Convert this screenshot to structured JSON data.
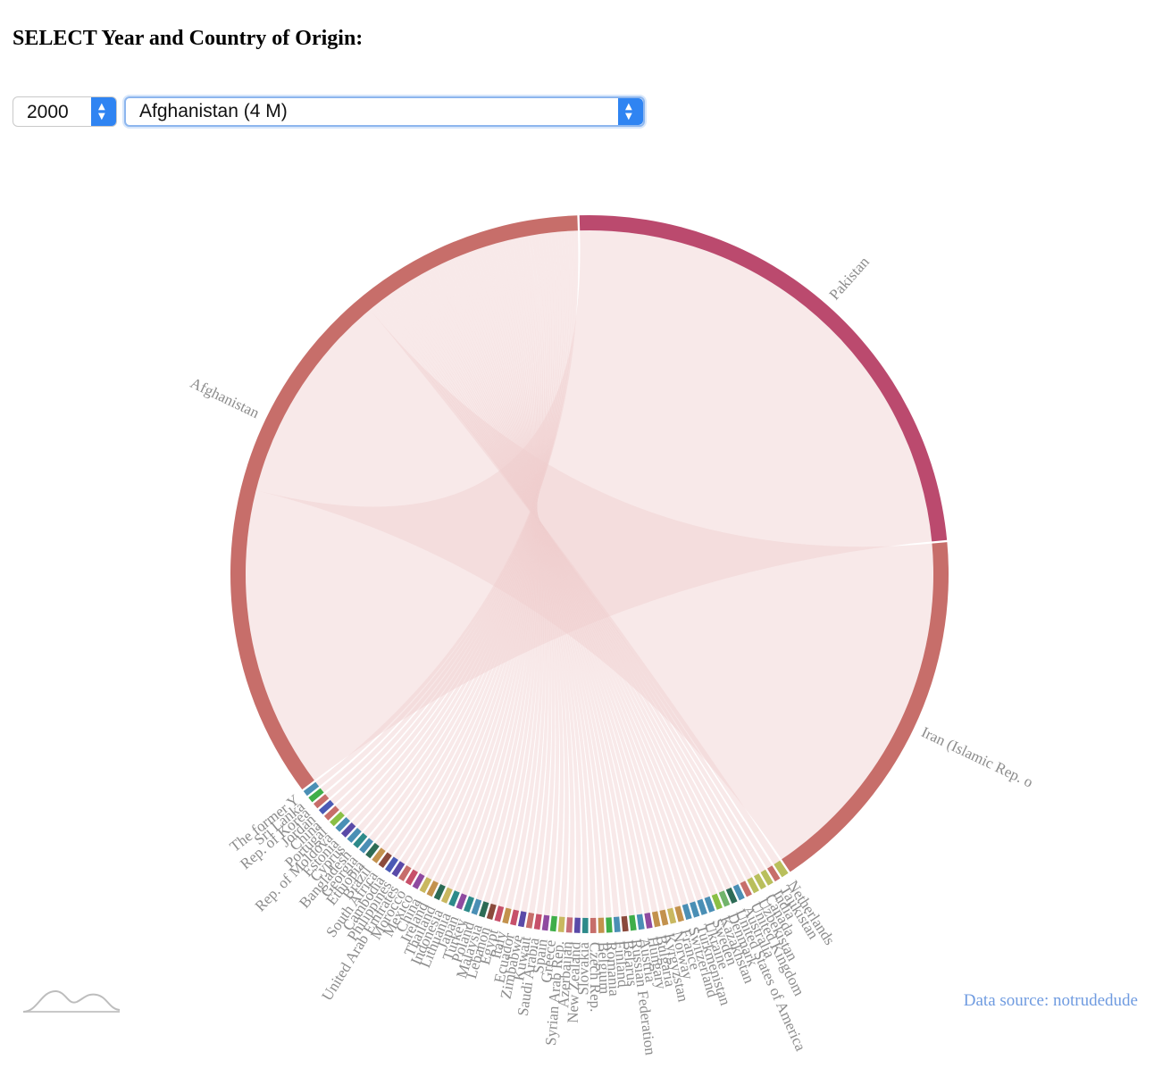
{
  "header": {
    "title": "SELECT Year and Country of Origin:"
  },
  "controls": {
    "year": {
      "value": "2000"
    },
    "country": {
      "value": "Afghanistan (4 M)"
    }
  },
  "footer": {
    "source": "Data source: notrudedude"
  },
  "icons": {
    "select_arrow": "updown-chevron-icon",
    "logo": "mountain-wave-logo-icon"
  },
  "colors": {
    "chord_fill": "#f0cfcf",
    "label": "#8c8c8c",
    "source_link": "#6f9be0",
    "select_accent": "#2f84f2"
  },
  "chart_data": {
    "type": "chord",
    "origin": "Afghanistan",
    "year": "2000",
    "destinations": [
      {
        "name": "Pakistan",
        "value": 2000,
        "color": "#bb4a6e"
      },
      {
        "name": "Iran (Islamic Rep. o",
        "value": 1420,
        "color": "#c76e6a"
      },
      {
        "name": "Netherlands",
        "value": 28,
        "color": "#b9bf5c"
      },
      {
        "name": "Tajikistan",
        "value": 22,
        "color": "#c76e6a"
      },
      {
        "name": "India",
        "value": 22,
        "color": "#b9bf5c"
      },
      {
        "name": "Canada",
        "value": 22,
        "color": "#b9bf5c"
      },
      {
        "name": "Uzbekistan",
        "value": 22,
        "color": "#b9bf5c"
      },
      {
        "name": "United Kingdom",
        "value": 22,
        "color": "#c76e6a"
      },
      {
        "name": "Australia",
        "value": 22,
        "color": "#4a8fb5"
      },
      {
        "name": "United States of America",
        "value": 22,
        "color": "#2d6b55"
      },
      {
        "name": "Denmark",
        "value": 22,
        "color": "#71b36a"
      },
      {
        "name": "Kazakhstan",
        "value": 22,
        "color": "#8abf45"
      },
      {
        "name": "Sweden",
        "value": 22,
        "color": "#4a8fb5"
      },
      {
        "name": "Ukraine",
        "value": 22,
        "color": "#4a8fb5"
      },
      {
        "name": "Turkmenistan",
        "value": 22,
        "color": "#4a8fb5"
      },
      {
        "name": "Switzerland",
        "value": 22,
        "color": "#4a8fb5"
      },
      {
        "name": "France",
        "value": 22,
        "color": "#c3924d"
      },
      {
        "name": "Norway",
        "value": 22,
        "color": "#c9b860"
      },
      {
        "name": "Kyrgyzstan",
        "value": 22,
        "color": "#c3924d"
      },
      {
        "name": "Bulgaria",
        "value": 22,
        "color": "#c3924d"
      },
      {
        "name": "Hungary",
        "value": 22,
        "color": "#8f4aa0"
      },
      {
        "name": "Austria",
        "value": 22,
        "color": "#4a8fb5"
      },
      {
        "name": "Russian Federation",
        "value": 22,
        "color": "#3fae49"
      },
      {
        "name": "Belarus",
        "value": 22,
        "color": "#8b4a3c"
      },
      {
        "name": "Finland",
        "value": 22,
        "color": "#4a8fb5"
      },
      {
        "name": "Romania",
        "value": 22,
        "color": "#3fae49"
      },
      {
        "name": "Belgium",
        "value": 22,
        "color": "#c3924d"
      },
      {
        "name": "Czech Rep.",
        "value": 22,
        "color": "#c76e6a"
      },
      {
        "name": "Slovakia",
        "value": 22,
        "color": "#2d8a8a"
      },
      {
        "name": "New Zealand",
        "value": 22,
        "color": "#5a4aa8"
      },
      {
        "name": "Azerbaijan",
        "value": 22,
        "color": "#c76e7a"
      },
      {
        "name": "Syrian Arab Rep.",
        "value": 22,
        "color": "#c9b860"
      },
      {
        "name": "Greece",
        "value": 22,
        "color": "#3fae49"
      },
      {
        "name": "Spain",
        "value": 22,
        "color": "#8f4aa0"
      },
      {
        "name": "Saudi Arabia",
        "value": 22,
        "color": "#c7506a"
      },
      {
        "name": "Kuwait",
        "value": 22,
        "color": "#c76e6a"
      },
      {
        "name": "Zimbabwe",
        "value": 22,
        "color": "#5a4aa8"
      },
      {
        "name": "Ecuador",
        "value": 22,
        "color": "#c7506a"
      },
      {
        "name": "Italy",
        "value": 22,
        "color": "#c3924d"
      },
      {
        "name": "Egypt",
        "value": 22,
        "color": "#c7506a"
      },
      {
        "name": "Lebanon",
        "value": 22,
        "color": "#8b4a3c"
      },
      {
        "name": "Malaysia",
        "value": 22,
        "color": "#2d6b55"
      },
      {
        "name": "Poland",
        "value": 22,
        "color": "#4a8fb5"
      },
      {
        "name": "Turkey",
        "value": 22,
        "color": "#2d8a8a"
      },
      {
        "name": "Japan",
        "value": 22,
        "color": "#8f4aa0"
      },
      {
        "name": "Lithuania",
        "value": 22,
        "color": "#2d8a8a"
      },
      {
        "name": "Indonesia",
        "value": 22,
        "color": "#c9b860"
      },
      {
        "name": "Thailand",
        "value": 22,
        "color": "#2d6b55"
      },
      {
        "name": "Ireland",
        "value": 22,
        "color": "#c3924d"
      },
      {
        "name": "China",
        "value": 22,
        "color": "#c9b860"
      },
      {
        "name": "Mexico",
        "value": 22,
        "color": "#8f4aa0"
      },
      {
        "name": "Morocco",
        "value": 22,
        "color": "#c7506a"
      },
      {
        "name": "United Arab Emirates",
        "value": 22,
        "color": "#c76e6a"
      },
      {
        "name": "Philippines",
        "value": 22,
        "color": "#5a4aa8"
      },
      {
        "name": "Cambodia",
        "value": 22,
        "color": "#4a5ab5"
      },
      {
        "name": "South Africa",
        "value": 22,
        "color": "#8b4a3c"
      },
      {
        "name": "Brazil",
        "value": 22,
        "color": "#c3924d"
      },
      {
        "name": "Ethiopia",
        "value": 22,
        "color": "#2d6b55"
      },
      {
        "name": "Georgia",
        "value": 22,
        "color": "#4a8fb5"
      },
      {
        "name": "Bangladesh",
        "value": 22,
        "color": "#2d8a8a"
      },
      {
        "name": "Cyprus",
        "value": 22,
        "color": "#4a8fb5"
      },
      {
        "name": "Estonia",
        "value": 22,
        "color": "#5a4aa8"
      },
      {
        "name": "Rep. of Moldova",
        "value": 22,
        "color": "#4a8fb5"
      },
      {
        "name": "Portugal",
        "value": 22,
        "color": "#8abf45"
      },
      {
        "name": "China",
        "value": 22,
        "color": "#c76e6a"
      },
      {
        "name": "Jordan",
        "value": 22,
        "color": "#4a5ab5"
      },
      {
        "name": "Rep. of Korea",
        "value": 22,
        "color": "#c76e6a"
      },
      {
        "name": "Sri Lanka",
        "value": 22,
        "color": "#3fae49"
      },
      {
        "name": "The former Y",
        "value": 22,
        "color": "#4a8fb5"
      },
      {
        "name": "Afghanistan",
        "value": 2900,
        "color": "#c76e6a"
      }
    ]
  }
}
